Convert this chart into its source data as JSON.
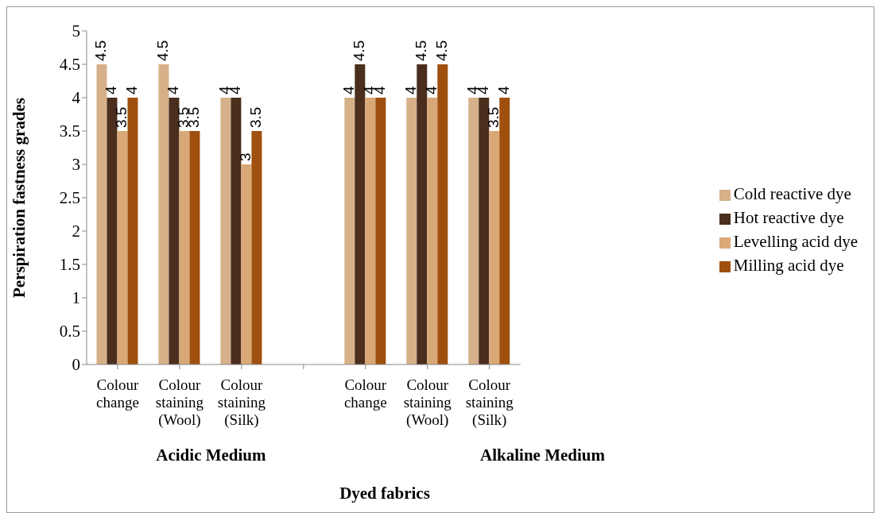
{
  "chart_data": {
    "type": "bar",
    "xlabel": "Dyed fabrics",
    "ylabel": "Perspiration fastness grades",
    "categories": [
      "Colour change",
      "Colour staining (Wool)",
      "Colour staining (Silk)",
      null,
      "Colour change",
      "Colour staining (Wool)",
      "Colour staining (Silk)"
    ],
    "series": [
      {
        "name": "Cold reactive dye",
        "color": "#d6b088",
        "values": [
          4.5,
          4.5,
          4,
          null,
          4,
          4,
          4
        ]
      },
      {
        "name": "Hot reactive dye",
        "color": "#4a2e1e",
        "values": [
          4,
          4,
          4,
          null,
          4.5,
          4.5,
          4
        ]
      },
      {
        "name": "Levelling acid dye",
        "color": "#d9a877",
        "values": [
          3.5,
          3.5,
          3,
          null,
          4,
          4,
          3.5
        ]
      },
      {
        "name": "Milling acid dye",
        "color": "#a0500e",
        "values": [
          4,
          3.5,
          3.5,
          null,
          4,
          4.5,
          4
        ]
      }
    ],
    "annotations": [
      "Acidic Medium",
      "Alkaline Medium"
    ],
    "ylim": [
      0,
      5
    ],
    "yticks": [
      0,
      0.5,
      1,
      1.5,
      2,
      2.5,
      3,
      3.5,
      4,
      4.5,
      5
    ],
    "data_labels": true,
    "grid": false,
    "legend": "right"
  }
}
